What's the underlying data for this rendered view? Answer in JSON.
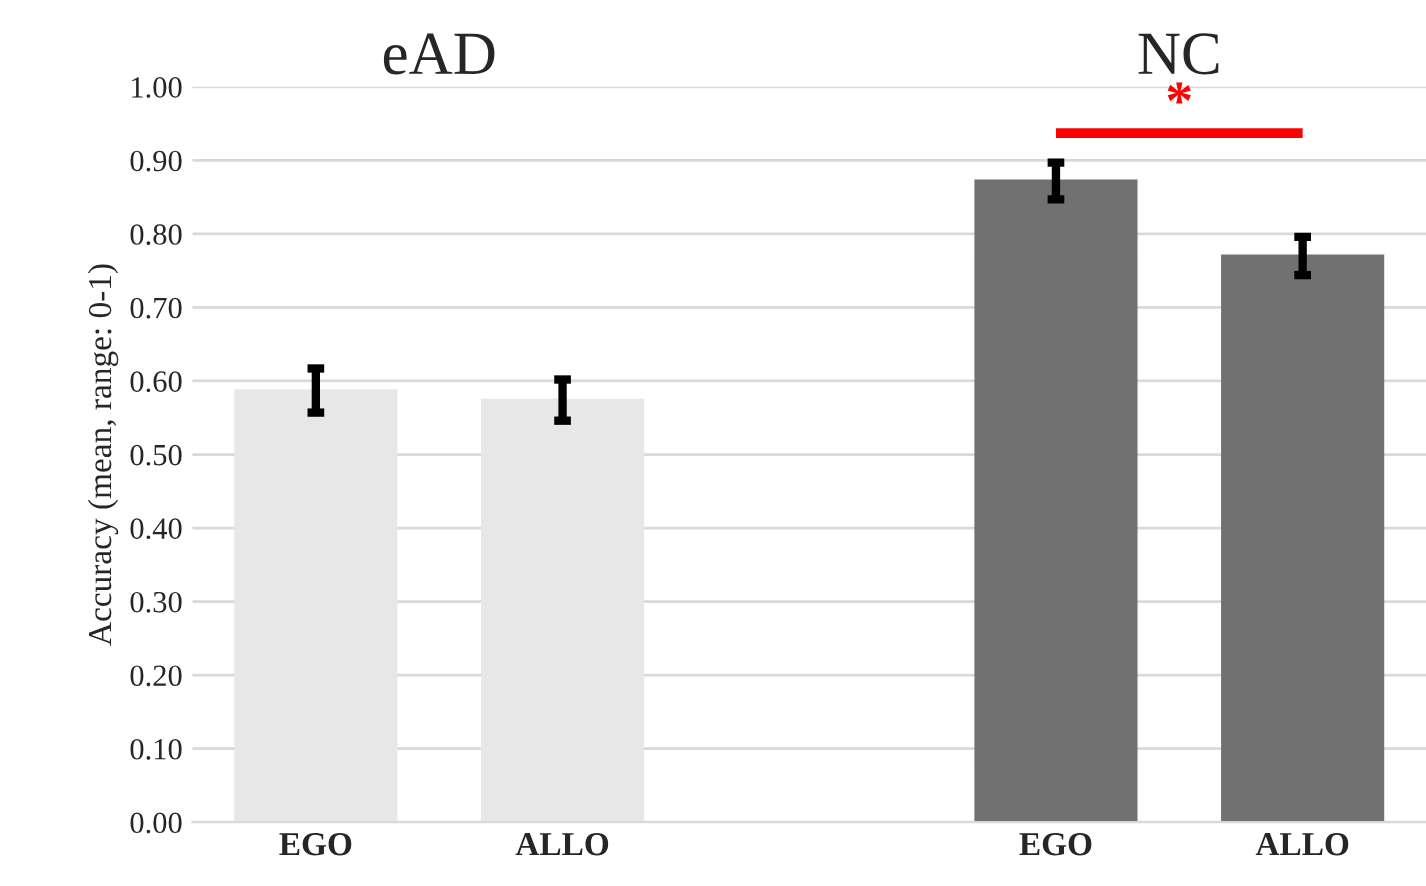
{
  "chart_data": {
    "type": "bar",
    "categories": [
      "EGO",
      "ALLO",
      null,
      "EGO",
      "ALLO"
    ],
    "values": [
      0.587,
      0.574,
      null,
      0.872,
      0.77
    ],
    "errors": [
      0.03,
      0.028,
      null,
      0.025,
      0.026
    ],
    "colors": [
      "#e7e7e7",
      "#e7e7e7",
      "#e7e7e7",
      "#717171",
      "#717171"
    ],
    "ylabel": "Accuracy (mean, range: 0-1)",
    "ylim": [
      0,
      1
    ],
    "yticks": [
      {
        "value": 0,
        "label": "0.00"
      },
      {
        "value": 0.1,
        "label": "0.10"
      },
      {
        "value": 0.2,
        "label": "0.20"
      },
      {
        "value": 0.3,
        "label": "0.30"
      },
      {
        "value": 0.4,
        "label": "0.40"
      },
      {
        "value": 0.5,
        "label": "0.50"
      },
      {
        "value": 0.6,
        "label": "0.60"
      },
      {
        "value": 0.7,
        "label": "0.70"
      },
      {
        "value": 0.8,
        "label": "0.80"
      },
      {
        "value": 0.9,
        "label": "0.90"
      },
      {
        "value": 1.0,
        "label": "1.00"
      }
    ],
    "grid": "y",
    "annotations": [
      "eAD",
      "NC",
      "*"
    ]
  }
}
